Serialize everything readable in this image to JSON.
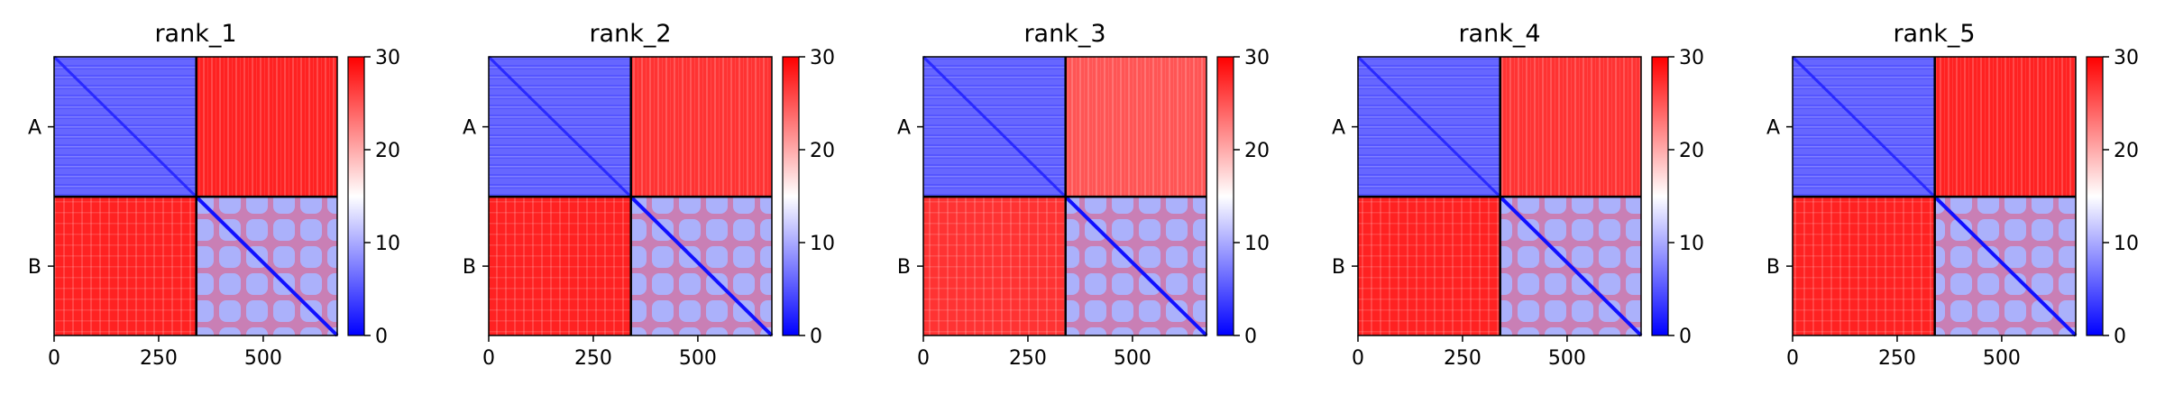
{
  "colors": {
    "low": "#0000ff",
    "mid": "#ffffff",
    "high": "#ff0000",
    "axis": "#000000",
    "background": "#ffffff"
  },
  "chart_data": [
    {
      "type": "heatmap",
      "title": "rank_1",
      "xlim": [
        0,
        677
      ],
      "xticks": [
        0,
        250,
        500
      ],
      "ycategories": [
        "A",
        "B"
      ],
      "chain_boundary": 340,
      "colorbar": {
        "min": 0,
        "max": 30,
        "ticks": [
          0,
          10,
          20,
          30
        ],
        "cmap": "bwr"
      },
      "block_values": {
        "A-A": 5,
        "A-B": 28,
        "B-A": 28,
        "B-B": 8
      },
      "grid": false
    },
    {
      "type": "heatmap",
      "title": "rank_2",
      "xlim": [
        0,
        677
      ],
      "xticks": [
        0,
        250,
        500
      ],
      "ycategories": [
        "A",
        "B"
      ],
      "chain_boundary": 340,
      "colorbar": {
        "min": 0,
        "max": 30,
        "ticks": [
          0,
          10,
          20,
          30
        ],
        "cmap": "bwr"
      },
      "block_values": {
        "A-A": 5,
        "A-B": 27,
        "B-A": 28,
        "B-B": 8
      },
      "grid": false
    },
    {
      "type": "heatmap",
      "title": "rank_3",
      "xlim": [
        0,
        677
      ],
      "xticks": [
        0,
        250,
        500
      ],
      "ycategories": [
        "A",
        "B"
      ],
      "chain_boundary": 340,
      "colorbar": {
        "min": 0,
        "max": 30,
        "ticks": [
          0,
          10,
          20,
          30
        ],
        "cmap": "bwr"
      },
      "block_values": {
        "A-A": 5,
        "A-B": 25,
        "B-A": 27,
        "B-B": 8
      },
      "grid": false
    },
    {
      "type": "heatmap",
      "title": "rank_4",
      "xlim": [
        0,
        677
      ],
      "xticks": [
        0,
        250,
        500
      ],
      "ycategories": [
        "A",
        "B"
      ],
      "chain_boundary": 340,
      "colorbar": {
        "min": 0,
        "max": 30,
        "ticks": [
          0,
          10,
          20,
          30
        ],
        "cmap": "bwr"
      },
      "block_values": {
        "A-A": 5,
        "A-B": 27,
        "B-A": 28,
        "B-B": 8
      },
      "grid": false
    },
    {
      "type": "heatmap",
      "title": "rank_5",
      "xlim": [
        0,
        677
      ],
      "xticks": [
        0,
        250,
        500
      ],
      "ycategories": [
        "A",
        "B"
      ],
      "chain_boundary": 340,
      "colorbar": {
        "min": 0,
        "max": 30,
        "ticks": [
          0,
          10,
          20,
          30
        ],
        "cmap": "bwr"
      },
      "block_values": {
        "A-A": 5,
        "A-B": 28,
        "B-A": 28,
        "B-B": 8
      },
      "grid": false
    }
  ]
}
